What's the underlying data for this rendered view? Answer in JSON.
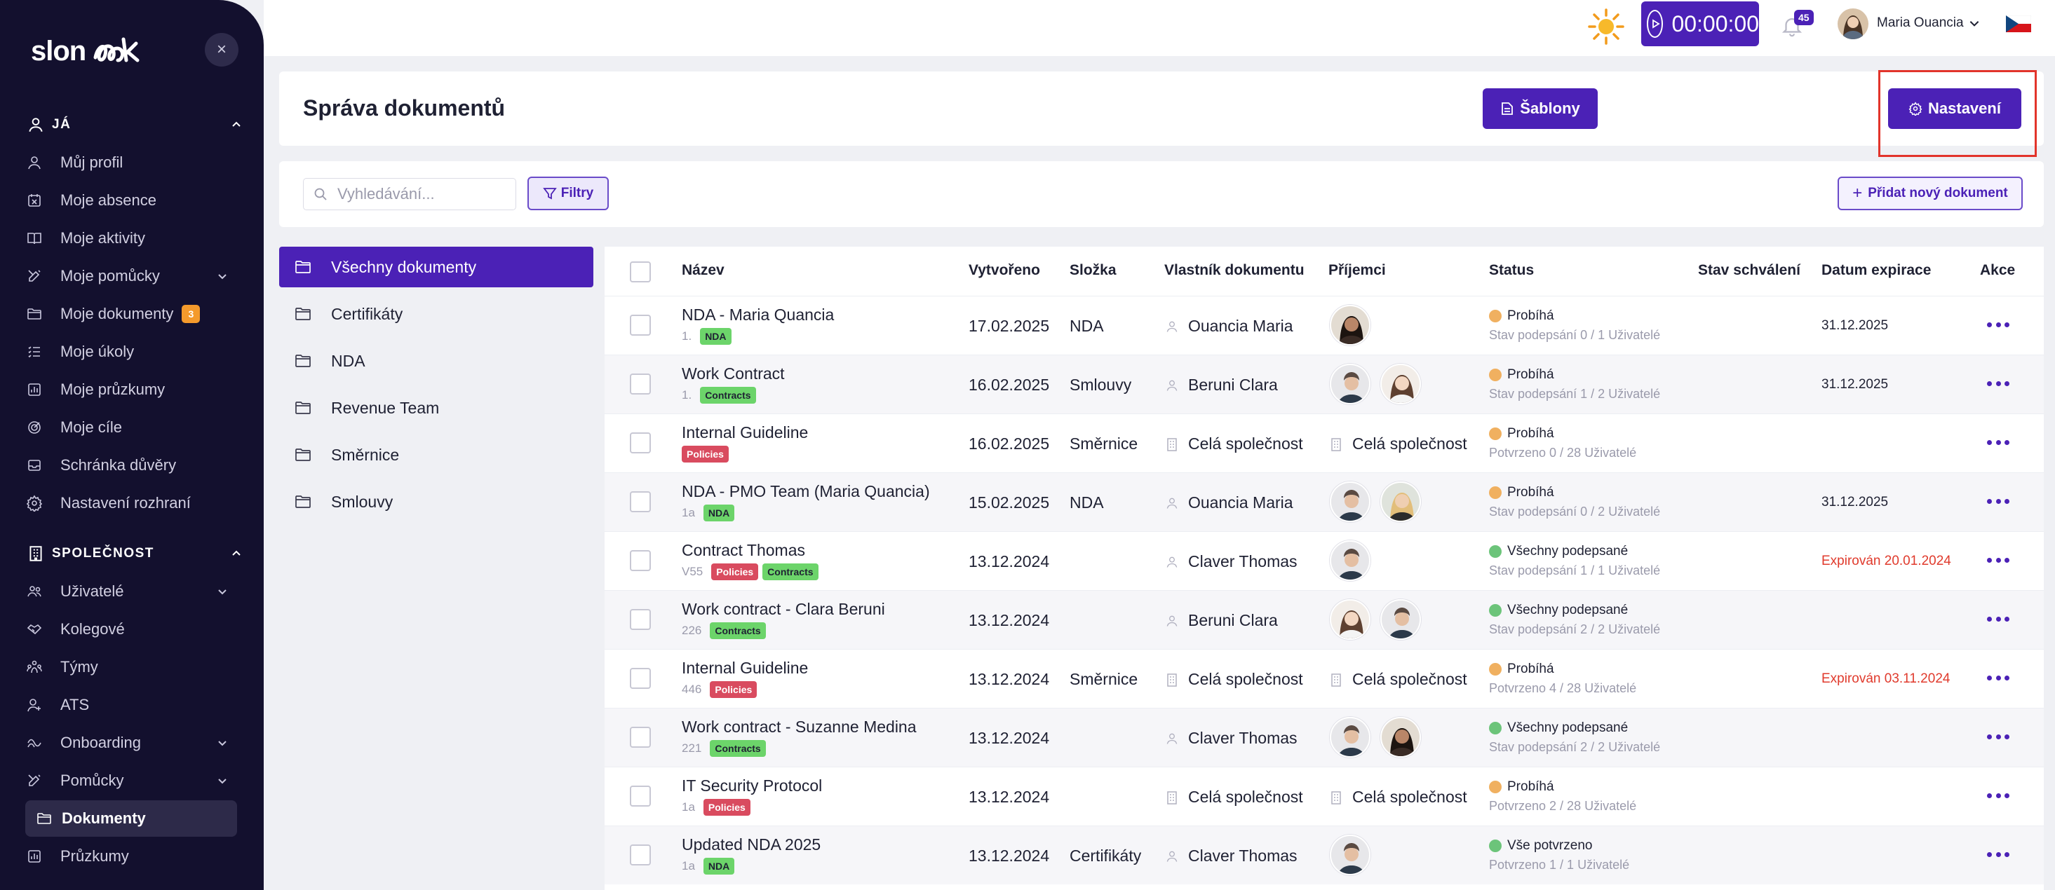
{
  "app": {
    "logo": "slonk"
  },
  "sidebar": {
    "close_glyph": "×",
    "sections": [
      {
        "title": "JÁ",
        "icon": "user-icon"
      },
      {
        "title": "SPOLEČNOST",
        "icon": "building-icon"
      }
    ],
    "me_items": [
      {
        "label": "Můj profil",
        "icon": "user-icon"
      },
      {
        "label": "Moje absence",
        "icon": "calendar-x-icon"
      },
      {
        "label": "Moje aktivity",
        "icon": "book-icon"
      },
      {
        "label": "Moje pomůcky",
        "icon": "tools-icon",
        "has_caret": true
      },
      {
        "label": "Moje dokumenty",
        "icon": "folder-icon",
        "badge": "3"
      },
      {
        "label": "Moje úkoly",
        "icon": "list-check-icon"
      },
      {
        "label": "Moje průzkumy",
        "icon": "chart-icon"
      },
      {
        "label": "Moje cíle",
        "icon": "target-icon"
      },
      {
        "label": "Schránka důvěry",
        "icon": "inbox-icon"
      },
      {
        "label": "Nastavení rozhraní",
        "icon": "gear-icon"
      }
    ],
    "company_items": [
      {
        "label": "Uživatelé",
        "icon": "users-icon",
        "has_caret": true
      },
      {
        "label": "Kolegové",
        "icon": "handshake-icon"
      },
      {
        "label": "Týmy",
        "icon": "team-icon"
      },
      {
        "label": "ATS",
        "icon": "user-plus-icon"
      },
      {
        "label": "Onboarding",
        "icon": "onboarding-icon",
        "has_caret": true
      },
      {
        "label": "Pomůcky",
        "icon": "tools-icon",
        "has_caret": true
      },
      {
        "label": "Dokumenty",
        "icon": "folder-icon",
        "active": true
      },
      {
        "label": "Průzkumy",
        "icon": "chart-icon"
      }
    ]
  },
  "topbar": {
    "timer": "00:00:00",
    "notifications_count": "45",
    "user_name": "Maria Ouancia",
    "language_flag": "czech-flag-icon"
  },
  "header": {
    "title": "Správa dokumentů",
    "btn_templates": "Šablony",
    "btn_settings": "Nastavení"
  },
  "toolbar": {
    "search_placeholder": "Vyhledávání...",
    "filter_label": "Filtry",
    "add_label": "Přidat nový dokument"
  },
  "folders": [
    {
      "label": "Všechny dokumenty",
      "active": true
    },
    {
      "label": "Certifikáty"
    },
    {
      "label": "NDA"
    },
    {
      "label": "Revenue Team"
    },
    {
      "label": "Směrnice"
    },
    {
      "label": "Smlouvy"
    }
  ],
  "table": {
    "columns": [
      "Název",
      "Vytvořeno",
      "Složka",
      "Vlastník dokumentu",
      "Příjemci",
      "Status",
      "Stav schválení",
      "Datum expirace",
      "Akce"
    ],
    "rows": [
      {
        "name": "NDA - Maria Quancia",
        "version": "1.",
        "tags": [
          "NDA"
        ],
        "created": "17.02.2025",
        "folder": "NDA",
        "owner": "Ouancia Maria",
        "owner_type": "person",
        "recipients": [
          "woman-dark"
        ],
        "status": "Probíhá",
        "status_color": "#f0b060",
        "status_sub": "Stav podepsání 0 / 1 Uživatelé",
        "expiry": "31.12.2025",
        "expiry_red": false
      },
      {
        "name": "Work Contract",
        "version": "1.",
        "tags": [
          "Contracts"
        ],
        "created": "16.02.2025",
        "folder": "Smlouvy",
        "owner": "Beruni Clara",
        "owner_type": "person",
        "recipients": [
          "man",
          "woman-light"
        ],
        "status": "Probíhá",
        "status_color": "#f0b060",
        "status_sub": "Stav podepsání 1 / 2 Uživatelé",
        "expiry": "31.12.2025",
        "expiry_red": false
      },
      {
        "name": "Internal Guideline",
        "version": "",
        "tags": [
          "Policies"
        ],
        "created": "16.02.2025",
        "folder": "Směrnice",
        "owner": "Celá společnost",
        "owner_type": "company",
        "recipients_text": "Celá společnost",
        "status": "Probíhá",
        "status_color": "#f0b060",
        "status_sub": "Potvrzeno 0 / 28 Uživatelé",
        "expiry": "",
        "expiry_red": false
      },
      {
        "name": "NDA - PMO Team (Maria Quancia)",
        "version": "1a",
        "tags": [
          "NDA"
        ],
        "created": "15.02.2025",
        "folder": "NDA",
        "owner": "Ouancia Maria",
        "owner_type": "person",
        "recipients": [
          "man",
          "woman-blonde"
        ],
        "status": "Probíhá",
        "status_color": "#f0b060",
        "status_sub": "Stav podepsání 0 / 2 Uživatelé",
        "expiry": "31.12.2025",
        "expiry_red": false
      },
      {
        "name": "Contract Thomas",
        "version": "V55",
        "tags": [
          "Policies",
          "Contracts"
        ],
        "created": "13.12.2024",
        "folder": "",
        "owner": "Claver Thomas",
        "owner_type": "person",
        "recipients": [
          "man"
        ],
        "status": "Všechny podepsané",
        "status_color": "#6cc47a",
        "status_sub": "Stav podepsání 1 / 1 Uživatelé",
        "expiry": "Expirován 20.01.2024",
        "expiry_red": true
      },
      {
        "name": "Work contract - Clara Beruni",
        "version": "226",
        "tags": [
          "Contracts"
        ],
        "created": "13.12.2024",
        "folder": "",
        "owner": "Beruni Clara",
        "owner_type": "person",
        "recipients": [
          "woman-light",
          "man"
        ],
        "status": "Všechny podepsané",
        "status_color": "#6cc47a",
        "status_sub": "Stav podepsání 2 / 2 Uživatelé",
        "expiry": "",
        "expiry_red": false
      },
      {
        "name": "Internal Guideline",
        "version": "446",
        "tags": [
          "Policies"
        ],
        "created": "13.12.2024",
        "folder": "Směrnice",
        "owner": "Celá společnost",
        "owner_type": "company",
        "recipients_text": "Celá společnost",
        "status": "Probíhá",
        "status_color": "#f0b060",
        "status_sub": "Potvrzeno 4 / 28 Uživatelé",
        "expiry": "Expirován 03.11.2024",
        "expiry_red": true
      },
      {
        "name": "Work contract - Suzanne Medina",
        "version": "221",
        "tags": [
          "Contracts"
        ],
        "created": "13.12.2024",
        "folder": "",
        "owner": "Claver Thomas",
        "owner_type": "person",
        "recipients": [
          "man",
          "woman-dark"
        ],
        "status": "Všechny podepsané",
        "status_color": "#6cc47a",
        "status_sub": "Stav podepsání 2 / 2 Uživatelé",
        "expiry": "",
        "expiry_red": false
      },
      {
        "name": "IT Security Protocol",
        "version": "1a",
        "tags": [
          "Policies"
        ],
        "created": "13.12.2024",
        "folder": "",
        "owner": "Celá společnost",
        "owner_type": "company",
        "recipients_text": "Celá společnost",
        "status": "Probíhá",
        "status_color": "#f0b060",
        "status_sub": "Potvrzeno 2 / 28 Uživatelé",
        "expiry": "",
        "expiry_red": false
      },
      {
        "name": "Updated NDA 2025",
        "version": "1a",
        "tags": [
          "NDA"
        ],
        "created": "13.12.2024",
        "folder": "Certifikáty",
        "owner": "Claver Thomas",
        "owner_type": "person",
        "recipients": [
          "man"
        ],
        "status": "Vše potvrzeno",
        "status_color": "#6cc47a",
        "status_sub": "Potvrzeno 1 / 1 Uživatelé",
        "expiry": "",
        "expiry_red": false
      }
    ]
  }
}
